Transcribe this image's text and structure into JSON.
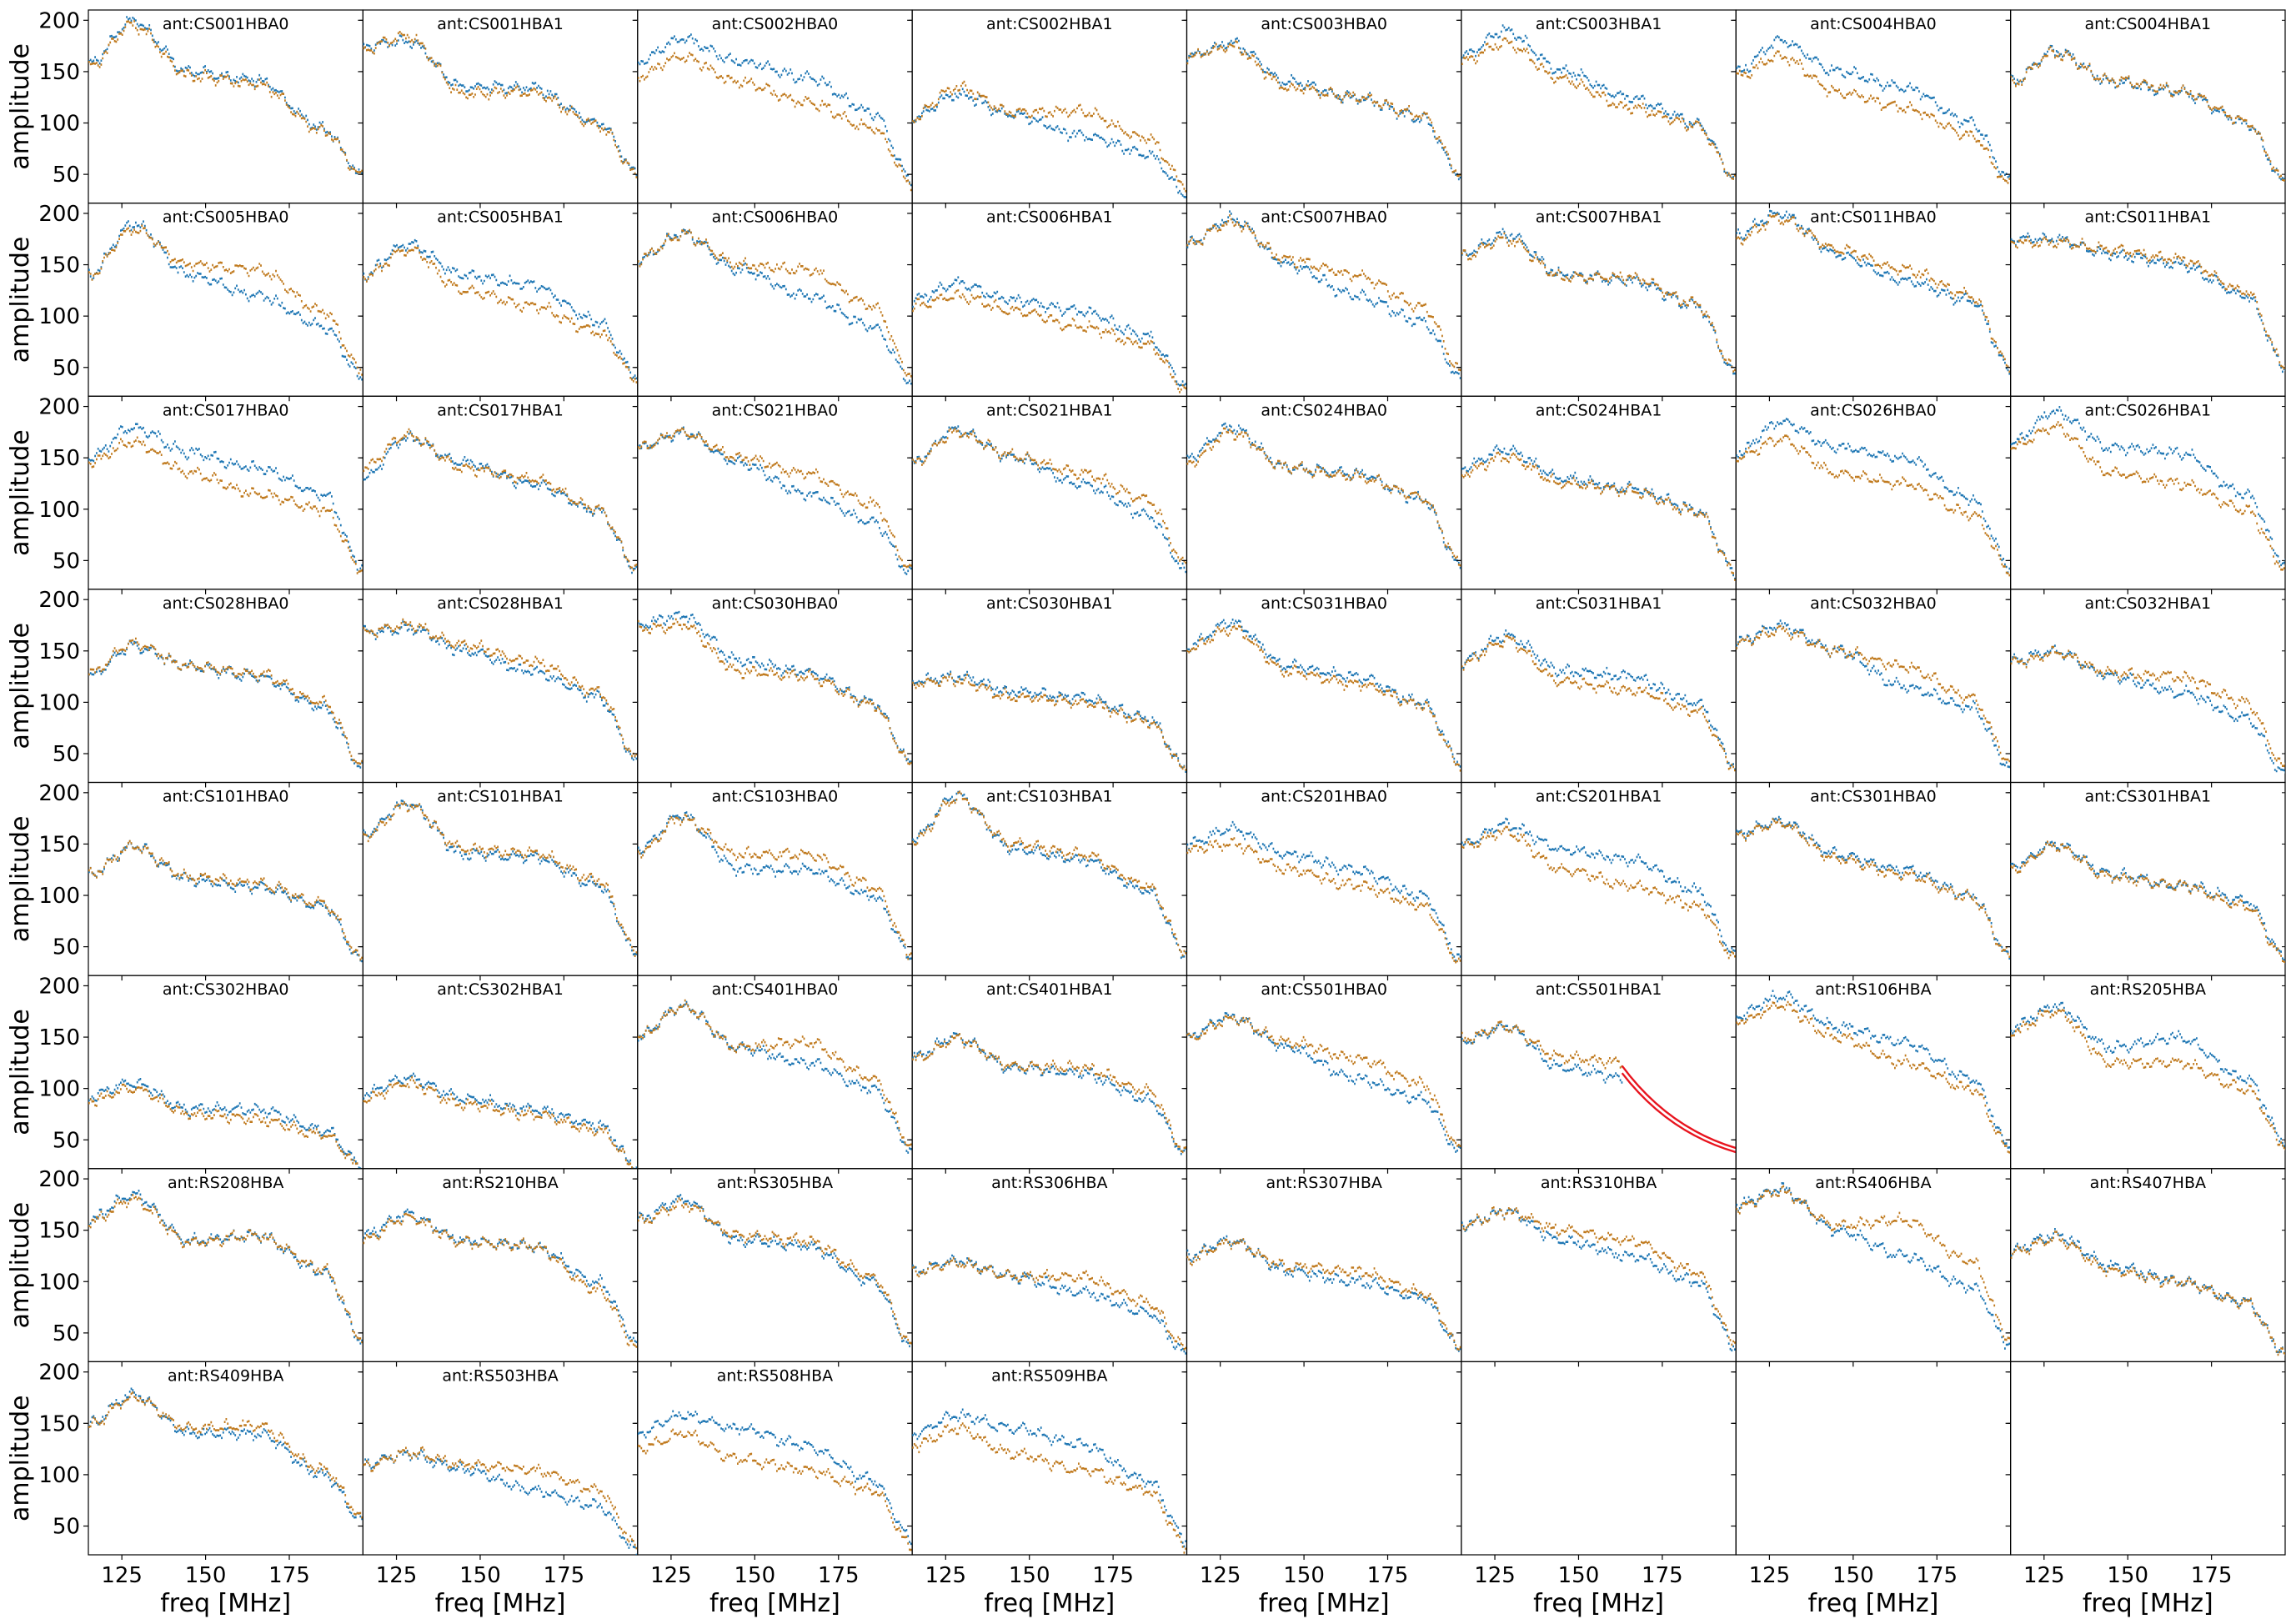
{
  "figure": {
    "ylabel": "amplitude",
    "xlabel": "freq [MHz]",
    "colors": {
      "pol_xx": "#1f77b4",
      "pol_yy": "#c07a1e",
      "flagged": "#e8141e",
      "axes": "#000000"
    }
  },
  "chart_data": {
    "type": "scatter",
    "layout": "8x8 grid of subplots with shared axes",
    "xlabel": "freq [MHz]",
    "ylabel": "amplitude",
    "xlim": [
      115,
      197
    ],
    "ylim": [
      22,
      210
    ],
    "xticks": [
      125,
      150,
      175
    ],
    "yticks": [
      50,
      100,
      150,
      200
    ],
    "grid": false,
    "series_colors": [
      "#1f77b4",
      "#c07a1e"
    ],
    "panels": [
      {
        "title": "ant:CS001HBA0",
        "a": [
          158,
          200,
          150,
          142,
          95,
          48
        ],
        "b": [
          155,
          195,
          146,
          138,
          92,
          48
        ]
      },
      {
        "title": "ant:CS001HBA1",
        "a": [
          175,
          180,
          135,
          135,
          100,
          52
        ],
        "b": [
          172,
          185,
          128,
          130,
          98,
          50
        ]
      },
      {
        "title": "ant:CS002HBA0",
        "a": [
          160,
          182,
          160,
          145,
          110,
          44
        ],
        "b": [
          145,
          165,
          140,
          120,
          95,
          40
        ]
      },
      {
        "title": "ant:CS002HBA1",
        "a": [
          105,
          128,
          108,
          88,
          70,
          30
        ],
        "b": [
          105,
          135,
          110,
          112,
          85,
          38
        ]
      },
      {
        "title": "ant:CS003HBA0",
        "a": [
          165,
          178,
          140,
          125,
          105,
          48
        ],
        "b": [
          165,
          175,
          135,
          125,
          108,
          50
        ]
      },
      {
        "title": "ant:CS003HBA1",
        "a": [
          165,
          190,
          150,
          125,
          100,
          45
        ],
        "b": [
          160,
          178,
          142,
          115,
          98,
          45
        ]
      },
      {
        "title": "ant:CS004HBA0",
        "a": [
          150,
          180,
          150,
          135,
          100,
          45
        ],
        "b": [
          145,
          165,
          130,
          115,
          88,
          40
        ]
      },
      {
        "title": "ant:CS004HBA1",
        "a": [
          140,
          170,
          140,
          130,
          100,
          42
        ],
        "b": [
          138,
          168,
          142,
          132,
          102,
          44
        ]
      },
      {
        "title": "ant:CS005HBA0",
        "a": [
          140,
          190,
          140,
          120,
          90,
          40
        ],
        "b": [
          140,
          185,
          150,
          145,
          105,
          45
        ]
      },
      {
        "title": "ant:CS005HBA1",
        "a": [
          140,
          170,
          140,
          130,
          95,
          40
        ],
        "b": [
          138,
          165,
          125,
          110,
          85,
          38
        ]
      },
      {
        "title": "ant:CS006HBA0",
        "a": [
          155,
          180,
          145,
          120,
          90,
          36
        ],
        "b": [
          155,
          180,
          150,
          145,
          110,
          42
        ]
      },
      {
        "title": "ant:CS006HBA1",
        "a": [
          115,
          132,
          115,
          105,
          80,
          32
        ],
        "b": [
          110,
          120,
          105,
          90,
          72,
          28
        ]
      },
      {
        "title": "ant:CS007HBA0",
        "a": [
          170,
          195,
          150,
          120,
          95,
          40
        ],
        "b": [
          170,
          192,
          155,
          140,
          110,
          45
        ]
      },
      {
        "title": "ant:CS007HBA1",
        "a": [
          160,
          180,
          140,
          135,
          110,
          44
        ],
        "b": [
          158,
          175,
          138,
          138,
          112,
          46
        ]
      },
      {
        "title": "ant:CS011HBA0",
        "a": [
          180,
          200,
          160,
          135,
          115,
          48
        ],
        "b": [
          175,
          195,
          165,
          145,
          120,
          50
        ]
      },
      {
        "title": "ant:CS011HBA1",
        "a": [
          175,
          175,
          160,
          150,
          120,
          50
        ],
        "b": [
          172,
          172,
          165,
          155,
          125,
          52
        ]
      },
      {
        "title": "ant:CS017HBA0",
        "a": [
          150,
          180,
          155,
          140,
          115,
          42
        ],
        "b": [
          145,
          165,
          135,
          115,
          100,
          40
        ]
      },
      {
        "title": "ant:CS017HBA1",
        "a": [
          130,
          170,
          145,
          125,
          98,
          40
        ],
        "b": [
          140,
          172,
          140,
          130,
          100,
          42
        ]
      },
      {
        "title": "ant:CS021HBA0",
        "a": [
          160,
          175,
          145,
          115,
          88,
          36
        ],
        "b": [
          160,
          175,
          150,
          135,
          105,
          40
        ]
      },
      {
        "title": "ant:CS021HBA1",
        "a": [
          145,
          178,
          150,
          125,
          95,
          38
        ],
        "b": [
          145,
          175,
          152,
          135,
          110,
          45
        ]
      },
      {
        "title": "ant:CS024HBA0",
        "a": [
          150,
          180,
          140,
          135,
          110,
          44
        ],
        "b": [
          145,
          175,
          140,
          132,
          112,
          46
        ]
      },
      {
        "title": "ant:CS024HBA1",
        "a": [
          140,
          158,
          130,
          120,
          100,
          38
        ],
        "b": [
          135,
          152,
          125,
          118,
          98,
          38
        ]
      },
      {
        "title": "ant:CS026HBA0",
        "a": [
          155,
          185,
          160,
          150,
          110,
          44
        ],
        "b": [
          150,
          168,
          135,
          125,
          95,
          40
        ]
      },
      {
        "title": "ant:CS026HBA1",
        "a": [
          165,
          195,
          160,
          155,
          115,
          48
        ],
        "b": [
          160,
          180,
          135,
          125,
          100,
          42
        ]
      },
      {
        "title": "ant:CS028HBA0",
        "a": [
          125,
          155,
          135,
          125,
          95,
          36
        ],
        "b": [
          128,
          157,
          135,
          128,
          100,
          38
        ]
      },
      {
        "title": "ant:CS028HBA1",
        "a": [
          168,
          172,
          150,
          130,
          105,
          42
        ],
        "b": [
          168,
          175,
          155,
          140,
          110,
          44
        ]
      },
      {
        "title": "ant:CS030HBA0",
        "a": [
          175,
          185,
          140,
          130,
          100,
          40
        ],
        "b": [
          172,
          175,
          130,
          125,
          98,
          38
        ]
      },
      {
        "title": "ant:CS030HBA1",
        "a": [
          120,
          125,
          110,
          105,
          85,
          36
        ],
        "b": [
          118,
          122,
          105,
          100,
          82,
          34
        ]
      },
      {
        "title": "ant:CS031HBA0",
        "a": [
          155,
          178,
          135,
          125,
          100,
          40
        ],
        "b": [
          152,
          172,
          130,
          118,
          98,
          38
        ]
      },
      {
        "title": "ant:CS031HBA1",
        "a": [
          140,
          165,
          130,
          125,
          100,
          38
        ],
        "b": [
          138,
          160,
          120,
          112,
          92,
          36
        ]
      },
      {
        "title": "ant:CS032HBA0",
        "a": [
          160,
          175,
          150,
          115,
          95,
          36
        ],
        "b": [
          158,
          170,
          150,
          135,
          105,
          42
        ]
      },
      {
        "title": "ant:CS032HBA1",
        "a": [
          140,
          150,
          125,
          110,
          85,
          30
        ],
        "b": [
          138,
          148,
          128,
          125,
          100,
          36
        ]
      },
      {
        "title": "ant:CS101HBA0",
        "a": [
          120,
          148,
          115,
          108,
          90,
          36
        ],
        "b": [
          120,
          147,
          118,
          112,
          92,
          38
        ]
      },
      {
        "title": "ant:CS101HBA1",
        "a": [
          160,
          190,
          140,
          138,
          110,
          42
        ],
        "b": [
          158,
          188,
          145,
          142,
          115,
          44
        ]
      },
      {
        "title": "ant:CS103HBA0",
        "a": [
          145,
          178,
          125,
          125,
          100,
          40
        ],
        "b": [
          142,
          175,
          140,
          140,
          110,
          42
        ]
      },
      {
        "title": "ant:CS103HBA1",
        "a": [
          155,
          198,
          145,
          135,
          105,
          42
        ],
        "b": [
          152,
          195,
          150,
          140,
          110,
          44
        ]
      },
      {
        "title": "ant:CS201HBA0",
        "a": [
          150,
          165,
          140,
          125,
          100,
          38
        ],
        "b": [
          145,
          150,
          125,
          110,
          90,
          34
        ]
      },
      {
        "title": "ant:CS201HBA1",
        "a": [
          150,
          168,
          145,
          135,
          105,
          42
        ],
        "b": [
          148,
          162,
          125,
          110,
          90,
          38
        ]
      },
      {
        "title": "ant:CS301HBA0",
        "a": [
          160,
          172,
          140,
          125,
          100,
          40
        ],
        "b": [
          158,
          170,
          135,
          120,
          98,
          40
        ]
      },
      {
        "title": "ant:CS301HBA1",
        "a": [
          128,
          150,
          120,
          110,
          95,
          40
        ],
        "b": [
          125,
          148,
          118,
          110,
          90,
          38
        ]
      },
      {
        "title": "ant:CS302HBA0",
        "a": [
          92,
          105,
          80,
          80,
          60,
          25
        ],
        "b": [
          88,
          100,
          75,
          70,
          55,
          22
        ]
      },
      {
        "title": "ant:CS302HBA1",
        "a": [
          95,
          110,
          90,
          80,
          65,
          24
        ],
        "b": [
          90,
          105,
          85,
          75,
          60,
          22
        ]
      },
      {
        "title": "ant:CS401HBA0",
        "a": [
          150,
          180,
          140,
          125,
          100,
          40
        ],
        "b": [
          150,
          180,
          140,
          145,
          110,
          44
        ]
      },
      {
        "title": "ant:CS401HBA1",
        "a": [
          130,
          150,
          120,
          115,
          90,
          36
        ],
        "b": [
          128,
          148,
          122,
          120,
          98,
          38
        ]
      },
      {
        "title": "ant:CS501HBA0",
        "a": [
          150,
          170,
          140,
          110,
          90,
          36
        ],
        "b": [
          148,
          168,
          145,
          130,
          105,
          40
        ]
      },
      {
        "title": "ant:CS501HBA1",
        "a": [
          145,
          160,
          120,
          110,
          90,
          40
        ],
        "b": [
          148,
          160,
          130,
          125,
          90,
          42
        ],
        "flag": {
          "x": [
            163,
            197
          ],
          "top": [
            122,
            42
          ],
          "bottom": [
            115,
            38
          ]
        }
      },
      {
        "title": "ant:RS106HBA",
        "a": [
          170,
          190,
          160,
          145,
          110,
          44
        ],
        "b": [
          165,
          180,
          150,
          125,
          100,
          40
        ]
      },
      {
        "title": "ant:RS205HBA",
        "a": [
          160,
          180,
          140,
          150,
          110,
          48
        ],
        "b": [
          155,
          175,
          125,
          125,
          100,
          44
        ]
      },
      {
        "title": "ant:RS208HBA",
        "a": [
          160,
          185,
          140,
          145,
          110,
          42
        ],
        "b": [
          158,
          180,
          138,
          145,
          112,
          44
        ]
      },
      {
        "title": "ant:RS210HBA",
        "a": [
          145,
          165,
          140,
          135,
          100,
          40
        ],
        "b": [
          142,
          162,
          138,
          135,
          92,
          36
        ]
      },
      {
        "title": "ant:RS305HBA",
        "a": [
          160,
          180,
          140,
          135,
          100,
          36
        ],
        "b": [
          158,
          175,
          145,
          140,
          105,
          38
        ]
      },
      {
        "title": "ant:RS306HBA",
        "a": [
          110,
          120,
          105,
          90,
          70,
          30
        ],
        "b": [
          108,
          118,
          105,
          105,
          80,
          34
        ]
      },
      {
        "title": "ant:RS307HBA",
        "a": [
          125,
          140,
          110,
          100,
          85,
          34
        ],
        "b": [
          122,
          138,
          115,
          110,
          90,
          36
        ]
      },
      {
        "title": "ant:RS310HBA",
        "a": [
          155,
          168,
          140,
          125,
          100,
          36
        ],
        "b": [
          155,
          168,
          150,
          140,
          110,
          40
        ]
      },
      {
        "title": "ant:RS406HBA",
        "a": [
          175,
          190,
          150,
          125,
          95,
          38
        ],
        "b": [
          172,
          188,
          155,
          160,
          120,
          42
        ]
      },
      {
        "title": "ant:RS407HBA",
        "a": [
          130,
          145,
          115,
          100,
          80,
          30
        ],
        "b": [
          128,
          142,
          110,
          100,
          80,
          30
        ]
      },
      {
        "title": "ant:RS409HBA",
        "a": [
          150,
          178,
          140,
          140,
          100,
          55
        ],
        "b": [
          148,
          175,
          145,
          148,
          105,
          58
        ]
      },
      {
        "title": "ant:RS503HBA",
        "a": [
          110,
          120,
          105,
          85,
          70,
          25
        ],
        "b": [
          108,
          122,
          110,
          105,
          85,
          30
        ]
      },
      {
        "title": "ant:RS508HBA",
        "a": [
          140,
          158,
          145,
          128,
          95,
          36
        ],
        "b": [
          125,
          140,
          115,
          105,
          85,
          30
        ]
      },
      {
        "title": "ant:RS509HBA",
        "a": [
          140,
          158,
          145,
          130,
          95,
          36
        ],
        "b": [
          128,
          145,
          120,
          105,
          85,
          30
        ]
      },
      {
        "title": ""
      },
      {
        "title": ""
      },
      {
        "title": ""
      },
      {
        "title": ""
      }
    ]
  }
}
